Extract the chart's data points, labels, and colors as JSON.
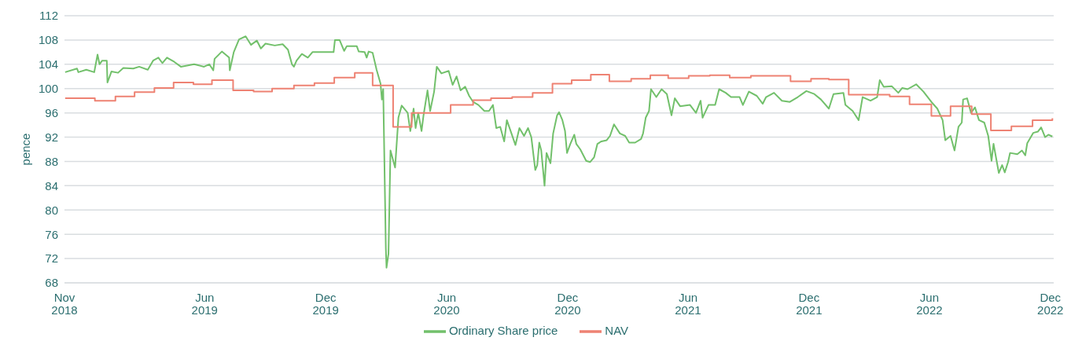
{
  "chart_data": {
    "type": "line",
    "ylabel": "pence",
    "legend": "bottom",
    "grid": "y",
    "marker": "none",
    "ylim": [
      68,
      112
    ],
    "yticks": [
      68,
      72,
      76,
      80,
      84,
      88,
      92,
      96,
      100,
      104,
      108,
      112
    ],
    "xlim": [
      "2018-11",
      "2022-12-06"
    ],
    "xticks": [
      {
        "value": "2018-11",
        "label": "Nov\n2018"
      },
      {
        "value": "2019-06",
        "label": "Jun\n2019"
      },
      {
        "value": "2019-12",
        "label": "Dec\n2019"
      },
      {
        "value": "2020-06",
        "label": "Jun\n2020"
      },
      {
        "value": "2020-12",
        "label": "Dec\n2020"
      },
      {
        "value": "2021-06",
        "label": "Jun\n2021"
      },
      {
        "value": "2021-12",
        "label": "Dec\n2021"
      },
      {
        "value": "2022-06",
        "label": "Jun\n2022"
      },
      {
        "value": "2022-12",
        "label": "Dec\n2022"
      }
    ],
    "series": [
      {
        "name": "Ordinary Share price",
        "color": "#72c06b",
        "x": [
          "2018-11-02",
          "2018-11-20",
          "2018-11-22",
          "2018-12-04",
          "2018-12-16",
          "2018-12-21",
          "2018-12-24",
          "2018-12-28",
          "2019-01-04",
          "2019-01-05",
          "2019-01-11",
          "2019-01-21",
          "2019-01-29",
          "2019-02-13",
          "2019-02-22",
          "2019-03-07",
          "2019-03-15",
          "2019-03-23",
          "2019-03-29",
          "2019-04-05",
          "2019-04-16",
          "2019-04-26",
          "2019-05-16",
          "2019-05-31",
          "2019-06-08",
          "2019-06-14",
          "2019-06-16",
          "2019-06-27",
          "2019-07-08",
          "2019-07-09",
          "2019-07-15",
          "2019-07-23",
          "2019-08-02",
          "2019-08-10",
          "2019-08-19",
          "2019-08-25",
          "2019-09-01",
          "2019-09-15",
          "2019-09-27",
          "2019-10-05",
          "2019-10-11",
          "2019-10-14",
          "2019-10-18",
          "2019-10-26",
          "2019-11-04",
          "2019-11-11",
          "2019-12-13",
          "2019-12-15",
          "2019-12-22",
          "2019-12-29",
          "2020-01-02",
          "2020-01-17",
          "2020-01-20",
          "2020-01-29",
          "2020-02-01",
          "2020-02-04",
          "2020-02-10",
          "2020-02-16",
          "2020-02-22",
          "2020-02-24",
          "2020-02-26",
          "2020-03-01",
          "2020-03-02",
          "2020-03-05",
          "2020-03-08",
          "2020-03-15",
          "2020-03-20",
          "2020-03-25",
          "2020-04-03",
          "2020-04-07",
          "2020-04-12",
          "2020-04-15",
          "2020-04-19",
          "2020-04-24",
          "2020-04-27",
          "2020-05-03",
          "2020-05-07",
          "2020-05-13",
          "2020-05-17",
          "2020-05-24",
          "2020-06-04",
          "2020-06-10",
          "2020-06-16",
          "2020-06-22",
          "2020-06-29",
          "2020-07-05",
          "2020-07-11",
          "2020-07-19",
          "2020-07-28",
          "2020-08-04",
          "2020-08-10",
          "2020-08-15",
          "2020-08-21",
          "2020-08-27",
          "2020-08-31",
          "2020-09-07",
          "2020-09-13",
          "2020-09-19",
          "2020-09-26",
          "2020-10-02",
          "2020-10-07",
          "2020-10-13",
          "2020-10-16",
          "2020-10-19",
          "2020-10-22",
          "2020-10-27",
          "2020-10-30",
          "2020-11-05",
          "2020-11-09",
          "2020-11-15",
          "2020-11-18",
          "2020-11-23",
          "2020-11-27",
          "2020-11-30",
          "2020-12-05",
          "2020-12-11",
          "2020-12-14",
          "2020-12-20",
          "2020-12-29",
          "2021-01-04",
          "2021-01-10",
          "2021-01-15",
          "2021-01-21",
          "2021-01-29",
          "2021-02-03",
          "2021-02-09",
          "2021-02-18",
          "2021-02-26",
          "2021-03-04",
          "2021-03-13",
          "2021-03-22",
          "2021-03-25",
          "2021-03-29",
          "2021-04-03",
          "2021-04-06",
          "2021-04-14",
          "2021-04-22",
          "2021-04-30",
          "2021-05-07",
          "2021-05-12",
          "2021-05-20",
          "2021-06-04",
          "2021-06-13",
          "2021-06-20",
          "2021-06-23",
          "2021-07-02",
          "2021-07-12",
          "2021-07-18",
          "2021-07-28",
          "2021-08-05",
          "2021-08-18",
          "2021-08-23",
          "2021-09-01",
          "2021-09-13",
          "2021-09-22",
          "2021-09-27",
          "2021-10-09",
          "2021-10-21",
          "2021-11-02",
          "2021-11-14",
          "2021-11-27",
          "2021-12-09",
          "2021-12-19",
          "2021-12-31",
          "2022-01-07",
          "2022-01-22",
          "2022-01-25",
          "2022-02-05",
          "2022-02-14",
          "2022-02-20",
          "2022-03-04",
          "2022-03-14",
          "2022-03-18",
          "2022-03-24",
          "2022-04-05",
          "2022-04-15",
          "2022-04-21",
          "2022-04-29",
          "2022-05-12",
          "2022-05-23",
          "2022-06-04",
          "2022-06-13",
          "2022-06-21",
          "2022-06-25",
          "2022-07-03",
          "2022-07-09",
          "2022-07-15",
          "2022-07-20",
          "2022-07-22",
          "2022-07-28",
          "2022-08-03",
          "2022-08-09",
          "2022-08-15",
          "2022-08-23",
          "2022-08-29",
          "2022-09-03",
          "2022-09-06",
          "2022-09-14",
          "2022-09-19",
          "2022-09-23",
          "2022-09-28",
          "2022-10-01",
          "2022-10-12",
          "2022-10-19",
          "2022-10-24",
          "2022-10-27",
          "2022-11-05",
          "2022-11-12",
          "2022-11-17",
          "2022-11-23",
          "2022-11-28",
          "2022-12-04"
        ],
        "values": [
          102.7,
          103.3,
          102.7,
          103.1,
          102.7,
          105.6,
          104.0,
          104.6,
          104.6,
          101.0,
          102.8,
          102.6,
          103.4,
          103.3,
          103.6,
          103.1,
          104.6,
          105.1,
          104.2,
          105.1,
          104.4,
          103.6,
          104.0,
          103.6,
          104.0,
          103.0,
          104.9,
          106.1,
          105.1,
          103.0,
          106.0,
          108.1,
          108.6,
          107.2,
          107.9,
          106.6,
          107.4,
          107.1,
          107.3,
          106.4,
          104.0,
          103.6,
          104.6,
          105.7,
          105.1,
          106.0,
          106.0,
          108.0,
          108.0,
          106.2,
          107.0,
          107.0,
          106.1,
          106.0,
          105.1,
          106.1,
          105.9,
          103.1,
          100.8,
          98.2,
          99.9,
          73.7,
          70.5,
          72.8,
          89.8,
          87.0,
          95.2,
          97.2,
          96.0,
          93.0,
          96.7,
          93.5,
          96.0,
          93.0,
          95.6,
          99.7,
          96.3,
          99.5,
          103.6,
          102.5,
          102.9,
          100.6,
          102.0,
          99.7,
          100.3,
          98.8,
          97.8,
          97.3,
          96.3,
          96.3,
          97.3,
          93.5,
          93.7,
          91.3,
          94.8,
          92.6,
          90.7,
          93.5,
          92.2,
          93.5,
          92.0,
          86.6,
          87.4,
          91.1,
          89.8,
          84.0,
          89.4,
          87.7,
          92.6,
          95.6,
          96.1,
          94.8,
          93.0,
          89.4,
          90.9,
          92.4,
          90.9,
          90.0,
          88.1,
          87.9,
          88.7,
          90.9,
          91.3,
          91.5,
          92.2,
          94.1,
          92.6,
          92.2,
          91.1,
          91.1,
          91.7,
          92.6,
          95.2,
          96.3,
          99.9,
          98.6,
          99.9,
          99.1,
          95.6,
          98.4,
          97.1,
          97.3,
          96.0,
          98.0,
          95.2,
          97.3,
          97.3,
          99.9,
          99.3,
          98.6,
          98.6,
          97.3,
          99.5,
          98.8,
          97.5,
          98.6,
          99.3,
          98.0,
          97.8,
          98.6,
          99.6,
          99.1,
          98.2,
          96.7,
          99.1,
          99.3,
          97.3,
          96.3,
          94.8,
          98.6,
          98.0,
          98.6,
          101.4,
          100.3,
          100.4,
          99.3,
          100.1,
          99.9,
          100.7,
          99.5,
          97.8,
          96.7,
          94.8,
          91.5,
          92.2,
          89.8,
          93.7,
          94.4,
          98.2,
          98.4,
          96.0,
          96.9,
          94.8,
          94.4,
          92.2,
          88.1,
          90.9,
          86.1,
          87.4,
          86.2,
          87.9,
          89.4,
          89.2,
          89.8,
          89.0,
          91.0,
          92.7,
          92.9,
          93.6,
          92.0,
          92.4,
          92.1
        ]
      },
      {
        "name": "NAV",
        "type": "step",
        "color": "#ee8273",
        "x": [
          "2018-11-02",
          "2018-12-17",
          "2019-01-17",
          "2019-02-15",
          "2019-03-17",
          "2019-04-15",
          "2019-05-15",
          "2019-06-12",
          "2019-07-14",
          "2019-08-14",
          "2019-09-11",
          "2019-10-14",
          "2019-11-14",
          "2019-12-14",
          "2020-01-14",
          "2020-02-10",
          "2020-03-12",
          "2020-04-09",
          "2020-06-07",
          "2020-07-11",
          "2020-08-07",
          "2020-09-08",
          "2020-10-09",
          "2020-11-08",
          "2020-12-07",
          "2021-01-05",
          "2021-02-02",
          "2021-03-07",
          "2021-04-05",
          "2021-05-02",
          "2021-06-02",
          "2021-07-04",
          "2021-08-03",
          "2021-09-04",
          "2021-11-03",
          "2021-12-04",
          "2021-12-31",
          "2022-01-30",
          "2022-04-02",
          "2022-05-02",
          "2022-06-04",
          "2022-07-03",
          "2022-08-04",
          "2022-09-02",
          "2022-10-03",
          "2022-11-04",
          "2022-12-04"
        ],
        "values": [
          98.4,
          98.0,
          98.7,
          99.4,
          100.1,
          101.0,
          100.7,
          101.4,
          99.7,
          99.5,
          100.0,
          100.5,
          100.9,
          101.8,
          102.6,
          100.5,
          93.7,
          96.0,
          97.3,
          98.1,
          98.4,
          98.6,
          99.3,
          100.8,
          101.4,
          102.3,
          101.2,
          101.6,
          102.2,
          101.7,
          102.1,
          102.2,
          101.8,
          102.1,
          101.2,
          101.6,
          101.5,
          99.0,
          98.7,
          97.4,
          95.5,
          97.1,
          95.8,
          93.1,
          93.8,
          94.8,
          95.1
        ]
      }
    ]
  }
}
